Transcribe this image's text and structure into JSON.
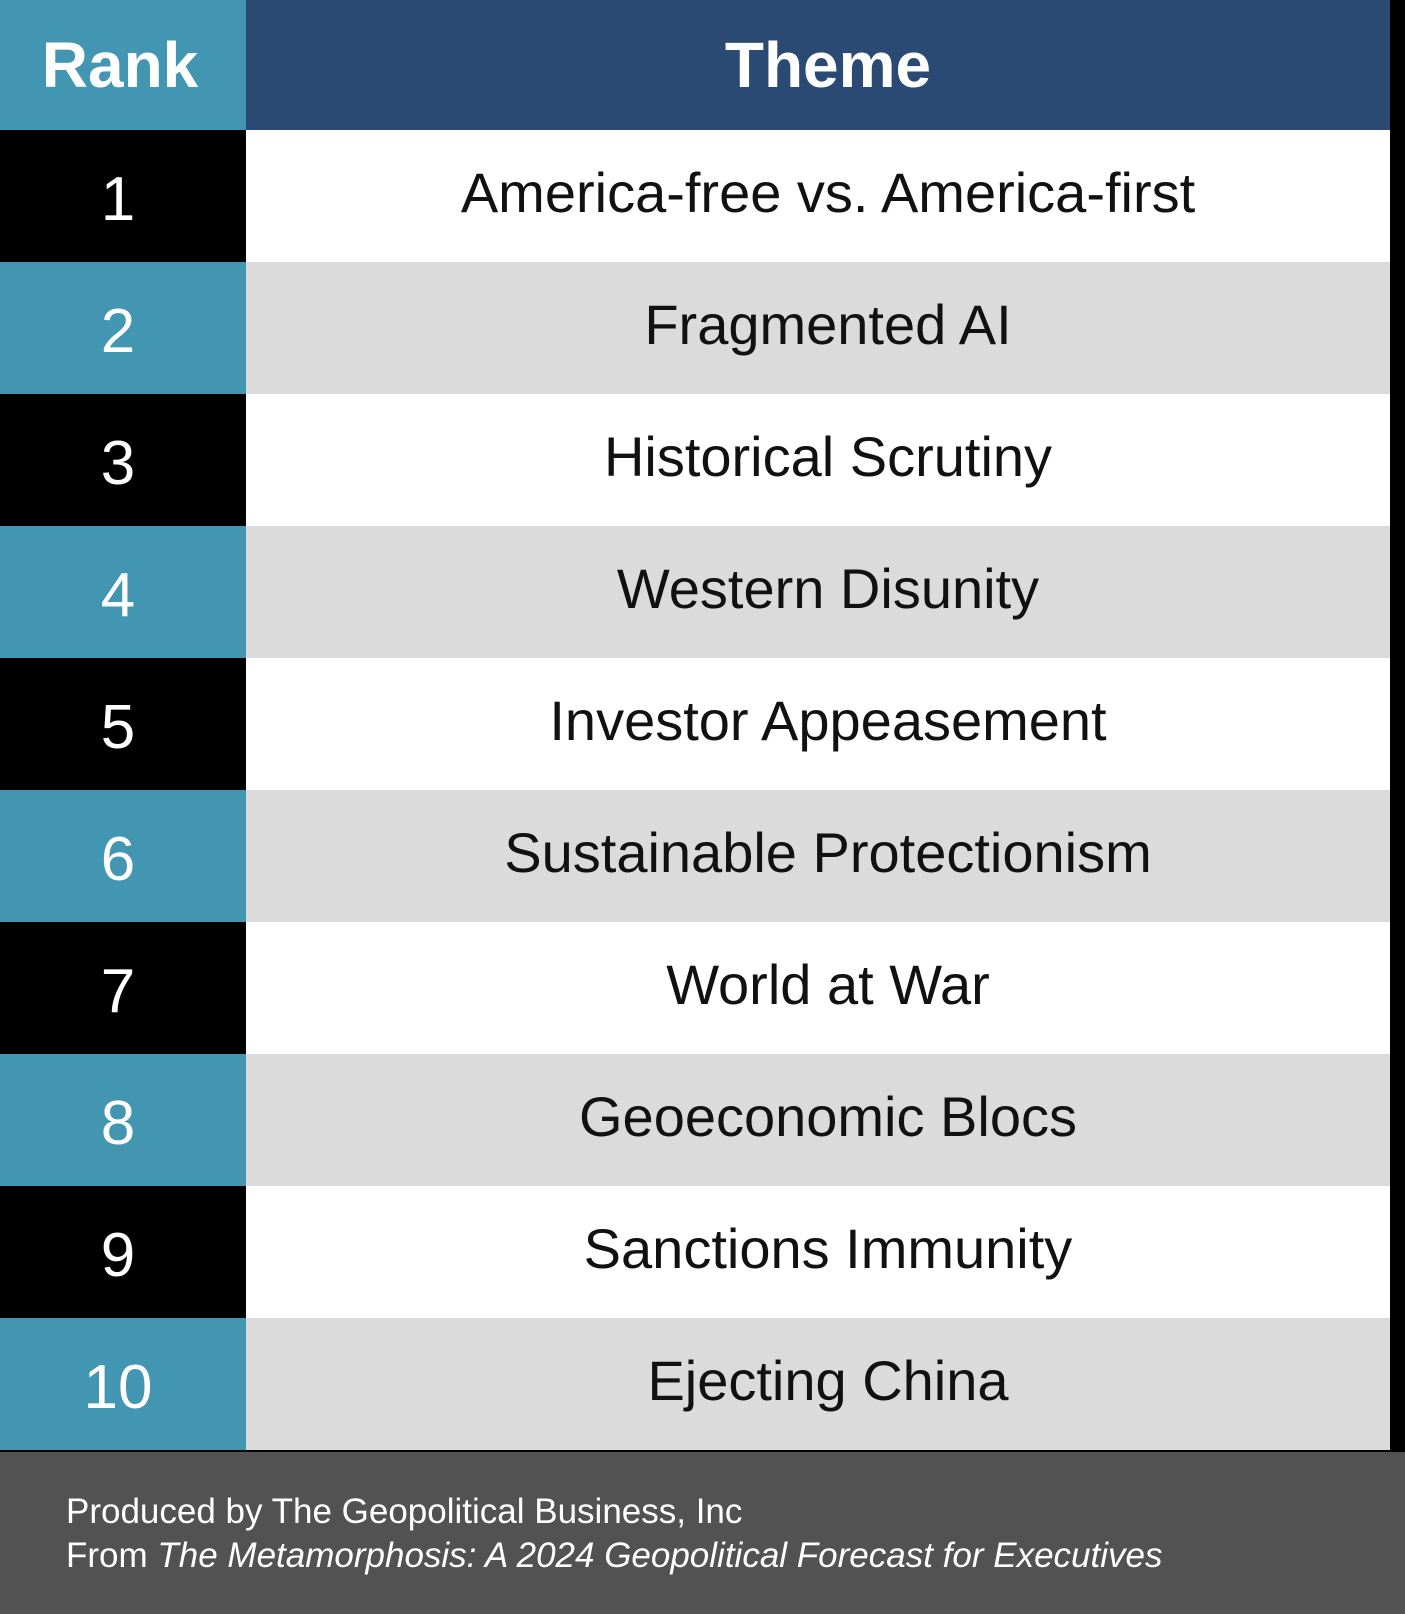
{
  "header": {
    "rank_label": "Rank",
    "theme_label": "Theme"
  },
  "rows": [
    {
      "rank": "1",
      "theme": "America-free vs. America-first"
    },
    {
      "rank": "2",
      "theme": "Fragmented AI"
    },
    {
      "rank": "3",
      "theme": "Historical Scrutiny"
    },
    {
      "rank": "4",
      "theme": "Western Disunity"
    },
    {
      "rank": "5",
      "theme": "Investor Appeasement"
    },
    {
      "rank": "6",
      "theme": "Sustainable Protectionism"
    },
    {
      "rank": "7",
      "theme": "World at War"
    },
    {
      "rank": "8",
      "theme": "Geoeconomic Blocs"
    },
    {
      "rank": "9",
      "theme": "Sanctions Immunity"
    },
    {
      "rank": "10",
      "theme": "Ejecting China"
    }
  ],
  "footer": {
    "line1": "Produced by The Geopolitical Business, Inc",
    "line2_prefix": "From ",
    "line2_title": "The Metamorphosis: A 2024 Geopolitical Forecast for Executives"
  },
  "colors": {
    "rank_header_bg": "#4396b2",
    "theme_header_bg": "#2a4a73",
    "rank_odd_bg": "#000000",
    "rank_even_bg": "#4396b2",
    "theme_odd_bg": "#ffffff",
    "theme_even_bg": "#dbdbdb",
    "footer_bg": "#525252"
  }
}
